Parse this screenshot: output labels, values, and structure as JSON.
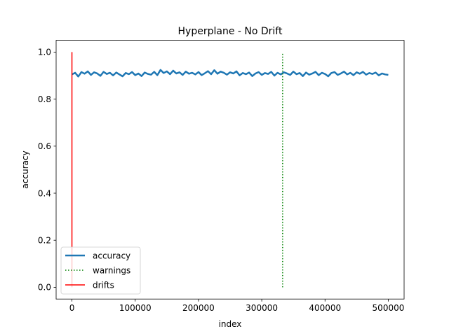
{
  "chart_data": {
    "type": "line",
    "title": "Hyperplane - No Drift",
    "xlabel": "index",
    "ylabel": "accuracy",
    "xlim": [
      -25000,
      525000
    ],
    "ylim": [
      -0.05,
      1.05
    ],
    "xticks": [
      0,
      100000,
      200000,
      300000,
      400000,
      500000
    ],
    "xtick_labels": [
      "0",
      "100000",
      "200000",
      "300000",
      "400000",
      "500000"
    ],
    "yticks": [
      0.0,
      0.2,
      0.4,
      0.6,
      0.8,
      1.0
    ],
    "ytick_labels": [
      "0.0",
      "0.2",
      "0.4",
      "0.6",
      "0.8",
      "1.0"
    ],
    "grid": false,
    "legend_position": "lower-left",
    "series": [
      {
        "name": "accuracy",
        "kind": "line",
        "style": "solid",
        "color": "#1f77b4",
        "x": [
          0,
          5000,
          10000,
          15000,
          20000,
          25000,
          30000,
          35000,
          40000,
          45000,
          50000,
          55000,
          60000,
          65000,
          70000,
          75000,
          80000,
          85000,
          90000,
          95000,
          100000,
          105000,
          110000,
          115000,
          120000,
          125000,
          130000,
          135000,
          140000,
          145000,
          150000,
          155000,
          160000,
          165000,
          170000,
          175000,
          180000,
          185000,
          190000,
          195000,
          200000,
          205000,
          210000,
          215000,
          220000,
          225000,
          230000,
          235000,
          240000,
          245000,
          250000,
          255000,
          260000,
          265000,
          270000,
          275000,
          280000,
          285000,
          290000,
          295000,
          300000,
          305000,
          310000,
          315000,
          320000,
          325000,
          330000,
          335000,
          340000,
          345000,
          350000,
          355000,
          360000,
          365000,
          370000,
          375000,
          380000,
          385000,
          390000,
          395000,
          400000,
          405000,
          410000,
          415000,
          420000,
          425000,
          430000,
          435000,
          440000,
          445000,
          450000,
          455000,
          460000,
          465000,
          470000,
          475000,
          480000,
          485000,
          490000,
          495000,
          500000
        ],
        "y": [
          0.905,
          0.912,
          0.896,
          0.915,
          0.908,
          0.918,
          0.903,
          0.914,
          0.909,
          0.899,
          0.916,
          0.907,
          0.912,
          0.901,
          0.913,
          0.905,
          0.897,
          0.911,
          0.906,
          0.915,
          0.902,
          0.909,
          0.898,
          0.913,
          0.907,
          0.904,
          0.916,
          0.902,
          0.924,
          0.911,
          0.918,
          0.906,
          0.921,
          0.909,
          0.914,
          0.903,
          0.917,
          0.908,
          0.912,
          0.905,
          0.915,
          0.902,
          0.91,
          0.919,
          0.906,
          0.923,
          0.908,
          0.917,
          0.912,
          0.904,
          0.914,
          0.909,
          0.918,
          0.901,
          0.911,
          0.906,
          0.913,
          0.898,
          0.909,
          0.915,
          0.903,
          0.911,
          0.907,
          0.916,
          0.9,
          0.912,
          0.905,
          0.914,
          0.909,
          0.903,
          0.917,
          0.906,
          0.911,
          0.898,
          0.913,
          0.904,
          0.909,
          0.916,
          0.902,
          0.912,
          0.907,
          0.897,
          0.911,
          0.915,
          0.903,
          0.909,
          0.917,
          0.905,
          0.912,
          0.902,
          0.914,
          0.908,
          0.916,
          0.904,
          0.911,
          0.907,
          0.913,
          0.901,
          0.909,
          0.905,
          0.903
        ]
      },
      {
        "name": "warnings",
        "kind": "vline",
        "style": "dotted",
        "color": "#008000",
        "x": 333000,
        "y_range": [
          0.0,
          1.0
        ]
      },
      {
        "name": "drifts",
        "kind": "vline",
        "style": "solid",
        "color": "#ff0000",
        "x": 0,
        "y_range": [
          0.0,
          1.0
        ]
      }
    ]
  }
}
